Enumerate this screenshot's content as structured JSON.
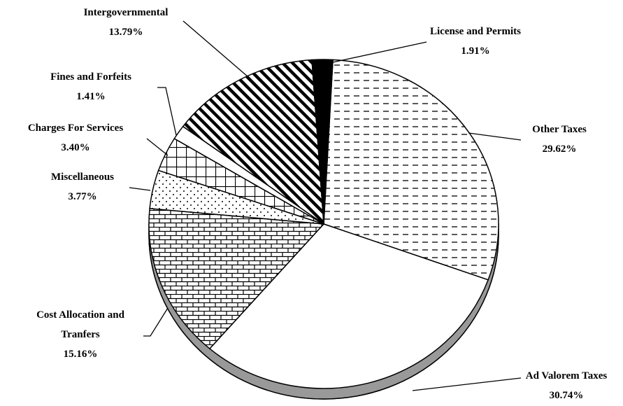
{
  "chart_data": {
    "type": "pie",
    "categories": [
      "Other Taxes",
      "Ad Valorem Taxes",
      "Cost Allocation and Tranfers",
      "Miscellaneous",
      "Charges For Services",
      "Fines and Forfeits",
      "Intergovernmental",
      "License and Permits"
    ],
    "values": [
      29.62,
      30.74,
      15.16,
      3.77,
      3.4,
      1.41,
      13.79,
      1.91
    ],
    "value_labels": [
      "29.62%",
      "30.74%",
      "15.16%",
      "3.77%",
      "3.40%",
      "1.41%",
      "13.79%",
      "1.91%"
    ]
  }
}
